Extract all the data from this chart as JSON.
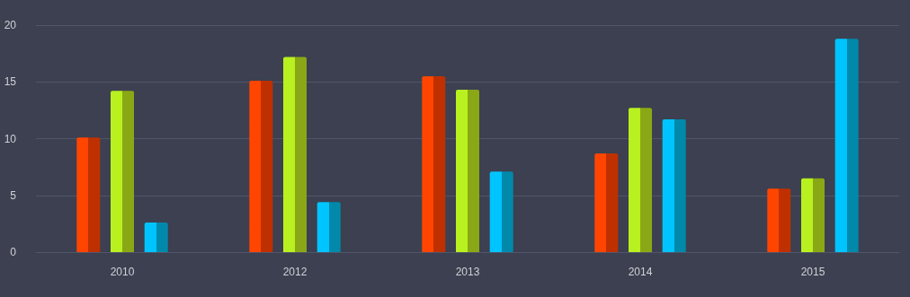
{
  "chart_data": {
    "type": "bar",
    "categories": [
      "2010",
      "2012",
      "2013",
      "2014",
      "2015"
    ],
    "series": [
      {
        "color": "#ff4500",
        "values": [
          10.1,
          15.1,
          15.5,
          8.7,
          5.6
        ]
      },
      {
        "color": "#b8f020",
        "values": [
          14.2,
          17.2,
          14.3,
          12.7,
          6.5
        ]
      },
      {
        "color": "#00c4ff",
        "values": [
          2.6,
          4.4,
          7.1,
          11.7,
          18.8
        ]
      }
    ],
    "ylim": [
      0,
      20
    ],
    "yticks": [
      0,
      5,
      10,
      15,
      20
    ],
    "grid": "y"
  }
}
